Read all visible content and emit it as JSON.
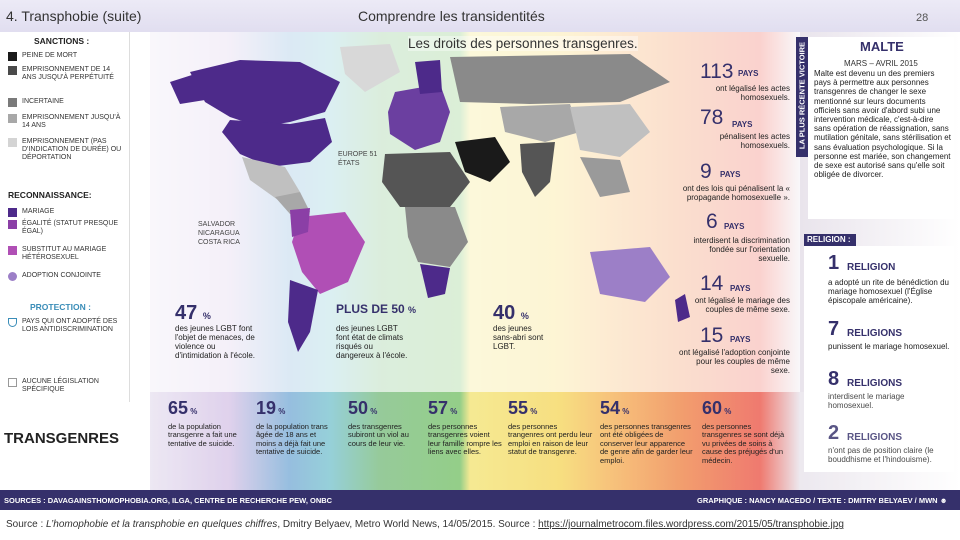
{
  "header": {
    "left": "4. Transphobie (suite)",
    "center": "Comprendre les transidentités",
    "slide_number": "28"
  },
  "map_title": "Les droits des personnes transgenres.",
  "legend": {
    "sanctions_title": "SANCTIONS :",
    "sanctions": [
      {
        "label": "PEINE DE MORT",
        "color": "#1a1a1a"
      },
      {
        "label": "EMPRISONNEMENT DE 14 ANS JUSQU'À PERPÉTUITÉ",
        "color": "#4a4a4a"
      },
      {
        "label": "INCERTAINE",
        "color": "#7a7a7a"
      },
      {
        "label": "EMPRISONNEMENT JUSQU'À 14 ANS",
        "color": "#a8a8a8"
      },
      {
        "label": "EMPRISONNEMENT (PAS D'INDICATION DE DURÉE) OU DÉPORTATION",
        "color": "#d4d4d4"
      }
    ],
    "recognition_title": "RECONNAISSANCE:",
    "recognition": [
      {
        "label": "MARIAGE",
        "color": "#4d2a8a"
      },
      {
        "label": "ÉGALITÉ (STATUT PRESQUE ÉGAL)",
        "color": "#8b3fa6"
      },
      {
        "label": "SUBSTITUT AU MARIAGE HÉTÉROSEXUEL",
        "color": "#b04fb5"
      },
      {
        "label": "ADOPTION CONJOINTE",
        "color": "#9c7fc7"
      }
    ],
    "protection_title": "PROTECTION :",
    "protection": [
      {
        "label": "PAYS QUI ONT ADOPTÉ DES LOIS ANTIDISCRIMINATION"
      }
    ],
    "none": {
      "label": "AUCUNE LÉGISLATION SPÉCIFIQUE"
    }
  },
  "map_labels": {
    "europe": "EUROPE 51 ÉTATS",
    "central_america": "SALVADOR NICARAGUA COSTA RICA"
  },
  "map_stats": [
    {
      "num": "47",
      "pct": "%",
      "text": "des jeunes LGBT font l'objet de menaces, de violence ou d'intimidation à l'école."
    },
    {
      "num": "PLUS DE 50",
      "pct": "%",
      "text": "des jeunes LGBT font état de climats risqués ou dangereux à l'école."
    },
    {
      "num": "40",
      "pct": "%",
      "text": "des jeunes sans-abri sont LGBT."
    }
  ],
  "middle_stats": [
    {
      "num": "113",
      "label": "PAYS",
      "text": "ont légalisé les actes homosexuels."
    },
    {
      "num": "78",
      "label": "PAYS",
      "text": "pénalisent les actes homosexuels."
    },
    {
      "num": "9",
      "label": "PAYS",
      "text": "ont des lois qui pénalisent la « propagande homosexuelle »."
    },
    {
      "num": "6",
      "label": "PAYS",
      "text": "interdisent la discrimination fondée sur l'orientation sexuelle."
    },
    {
      "num": "14",
      "label": "PAYS",
      "text": "ont légalisé le mariage des couples de même sexe."
    },
    {
      "num": "15",
      "label": "PAYS",
      "text": "ont légalisé l'adoption conjointe pour les couples de même sexe."
    }
  ],
  "malta": {
    "vertical": "LA PLUS RÉCENTE VICTOIRE",
    "title": "MALTE",
    "date": "MARS – AVRIL 2015",
    "text": "Malte est devenu un des premiers pays à permettre aux personnes transgenres de changer le sexe mentionné sur leurs documents officiels sans avoir d'abord subi une intervention médicale, c'est-à-dire sans opération de réassignation, sans mutilation génitale, sans stérilisation et sans évaluation psychologique. Si la personne est mariée, son changement de sexe est autorisé sans qu'elle soit obligée de divorcer."
  },
  "religion": {
    "title": "RELIGION :",
    "items": [
      {
        "num": "1",
        "label": "RELIGION",
        "text": "a adopté un rite de bénédiction du mariage homosexuel (l'Église épiscopale américaine)."
      },
      {
        "num": "7",
        "label": "RELIGIONS",
        "text": "punissent le mariage homosexuel."
      },
      {
        "num": "8",
        "label": "RELIGIONS",
        "text": "interdisent le mariage homosexuel."
      },
      {
        "num": "2",
        "label": "RELIGIONS",
        "text": "n'ont pas de position claire (le bouddhisme et l'hindouisme)."
      }
    ]
  },
  "transgenres": {
    "title": "TRANSGENRES",
    "stats": [
      {
        "num": "65",
        "pct": "%",
        "text": "de la population transgenre a fait une tentative de suicide."
      },
      {
        "num": "19",
        "pct": "%",
        "text": "de la population trans âgée de 18 ans et moins a déjà fait une tentative de suicide."
      },
      {
        "num": "50",
        "pct": "%",
        "text": "des transgenres subiront un viol au cours de leur vie."
      },
      {
        "num": "57",
        "pct": "%",
        "text": "des personnes transgenres voient leur famille rompre les liens avec elles."
      },
      {
        "num": "55",
        "pct": "%",
        "text": "des personnes trangenres ont perdu leur emploi en raison de leur statut de transgenre."
      },
      {
        "num": "54",
        "pct": "%",
        "text": "des personnes transgenres ont été obligées de conserver leur apparence de genre afin de garder leur emploi."
      },
      {
        "num": "60",
        "pct": "%",
        "text": "des personnes transgenres se sont déjà vu privées de soins à cause des préjugés d'un médecin."
      }
    ]
  },
  "sources_bar": {
    "left": "SOURCES : DAVAGAINSTHOMOPHOBIA.ORG, ILGA, CENTRE DE RECHERCHE PEW, ONBC",
    "right": "GRAPHIQUE : NANCY MACEDO / TEXTE : DMITRY BELYAEV / MWN ☻"
  },
  "caption": {
    "prefix": "Source : ",
    "title": "L’homophobie et la transphobie en quelques chiffres",
    "middle": ", Dmitry Belyaev, Metro World News, 14/05/2015. Source : ",
    "link": "https://journalmetrocom.files.wordpress.com/2015/05/transphobie.jpg"
  },
  "colors": {
    "accent": "#35306b",
    "marriage": "#4d2a8a",
    "substitute": "#b04fb5"
  }
}
